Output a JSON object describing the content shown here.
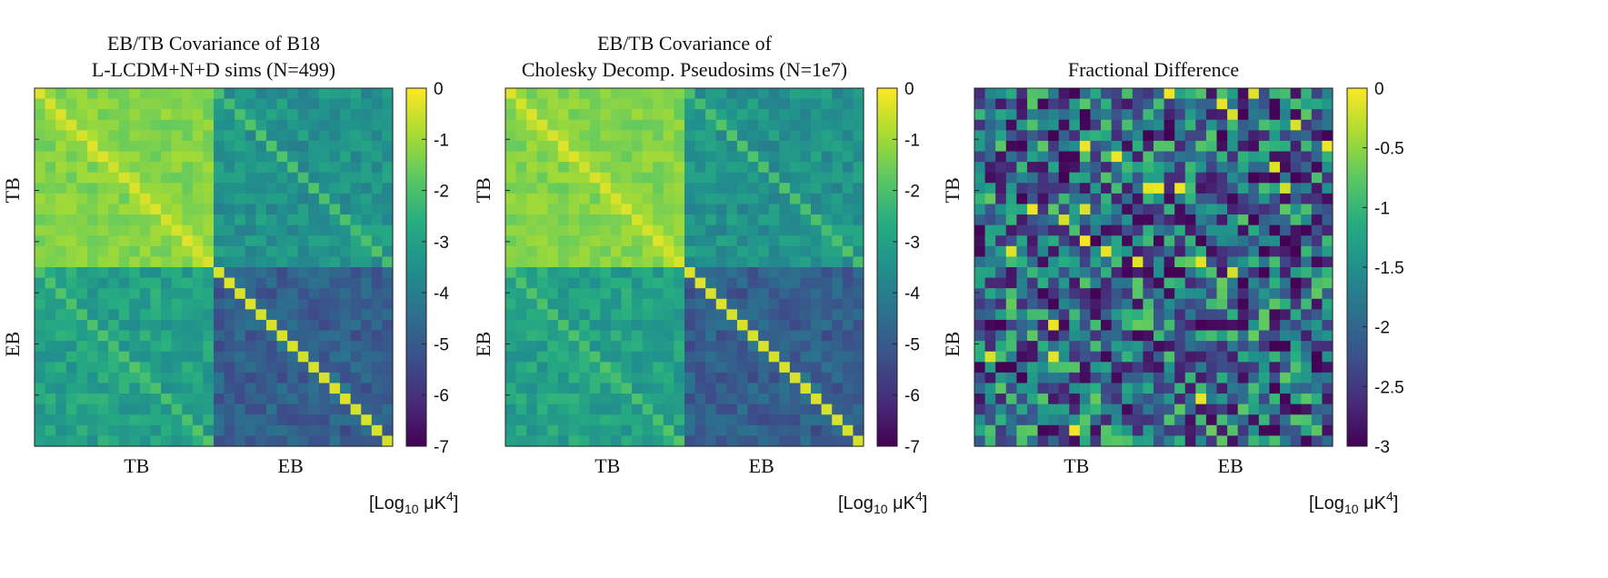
{
  "chart_data": [
    {
      "type": "heatmap",
      "title_lines": [
        "EB/TB Covariance of B18",
        "L-LCDM+N+D sims (N=499)"
      ],
      "x_tick_labels": [
        "TB",
        "EB"
      ],
      "y_tick_labels": [
        "TB",
        "EB"
      ],
      "colorbar": {
        "ticks": [
          "0",
          "-1",
          "-2",
          "-3",
          "-4",
          "-5",
          "-6",
          "-7"
        ],
        "range": [
          -7,
          0
        ],
        "unit_prefix": "[Log",
        "unit_sub": "10",
        "unit_mu": " μK",
        "unit_sup": "4",
        "unit_suffix": "]"
      },
      "grid_size": 34,
      "block_size": 17,
      "diag_value": -0.3,
      "blocks": {
        "TB_TB": -1.3,
        "TB_EB": -3.4,
        "EB_TB": -3.0,
        "EB_EB": -4.9
      },
      "block_jitter": {
        "TB_TB": 0.35,
        "TB_EB": 0.6,
        "EB_TB": 0.6,
        "EB_EB": 0.6
      },
      "offdiag_band_value": -2.0,
      "seed": 11
    },
    {
      "type": "heatmap",
      "title_lines": [
        "EB/TB Covariance of",
        "Cholesky Decomp. Pseudosims (N=1e7)"
      ],
      "x_tick_labels": [
        "TB",
        "EB"
      ],
      "y_tick_labels": [
        "TB",
        "EB"
      ],
      "colorbar": {
        "ticks": [
          "0",
          "-1",
          "-2",
          "-3",
          "-4",
          "-5",
          "-6",
          "-7"
        ],
        "range": [
          -7,
          0
        ],
        "unit_prefix": "[Log",
        "unit_sub": "10",
        "unit_mu": " μK",
        "unit_sup": "4",
        "unit_suffix": "]"
      },
      "grid_size": 34,
      "block_size": 17,
      "diag_value": -0.3,
      "blocks": {
        "TB_TB": -1.3,
        "TB_EB": -3.4,
        "EB_TB": -3.0,
        "EB_EB": -4.9
      },
      "block_jitter": {
        "TB_TB": 0.35,
        "TB_EB": 0.6,
        "EB_TB": 0.6,
        "EB_EB": 0.6
      },
      "offdiag_band_value": -2.0,
      "seed": 11
    },
    {
      "type": "heatmap",
      "title_lines": [
        "Fractional Difference"
      ],
      "x_tick_labels": [
        "TB",
        "EB"
      ],
      "y_tick_labels": [
        "TB",
        "EB"
      ],
      "colorbar": {
        "ticks": [
          "0",
          "-0.5",
          "-1",
          "-1.5",
          "-2",
          "-2.5",
          "-3"
        ],
        "range": [
          -3,
          0
        ],
        "unit_prefix": "[Log",
        "unit_sub": "10",
        "unit_mu": " μK",
        "unit_sup": "4",
        "unit_suffix": "]"
      },
      "grid_size": 34,
      "block_size": 17,
      "random_range": [
        -3,
        -0.7
      ],
      "bright_fraction": 0.03,
      "seed": 29
    }
  ],
  "colormap": [
    "#440154",
    "#472c7a",
    "#3b518b",
    "#2c718e",
    "#21908d",
    "#27ad81",
    "#5cc863",
    "#aadc32",
    "#fde725"
  ]
}
